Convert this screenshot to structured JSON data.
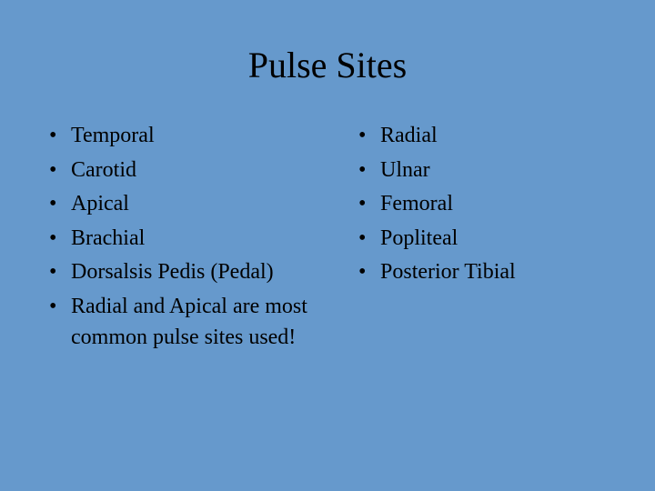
{
  "background_color": "#6699cc",
  "text_color": "#000000",
  "title": {
    "text": "Pulse Sites",
    "fontsize": 40
  },
  "body_fontsize": 24,
  "bullet_char": "•",
  "columns": {
    "left": {
      "items": [
        "Temporal",
        "Carotid",
        "Apical",
        "Brachial",
        "Dorsalsis Pedis (Pedal)",
        "Radial and Apical are most common pulse sites used!"
      ]
    },
    "right": {
      "items": [
        "Radial",
        "Ulnar",
        "Femoral",
        "Popliteal",
        "Posterior Tibial"
      ]
    }
  }
}
